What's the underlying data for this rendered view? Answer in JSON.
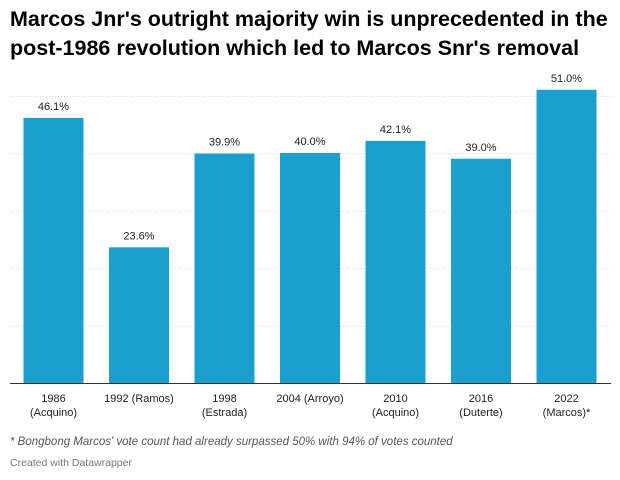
{
  "title": "Marcos Jnr's outright majority win is unprecedented in the post-1986 revolution which led to Marcos Snr's removal",
  "footnote": "* Bongbong Marcos' vote count had already surpassed 50% with 94% of votes counted",
  "credit": "Created with Datawrapper",
  "colors": {
    "bar": "#1a9fce",
    "grid": "#d9d9d9",
    "axis": "#333333",
    "label": "#222222"
  },
  "chart_data": {
    "type": "bar",
    "title": "Marcos Jnr's outright majority win is unprecedented in the post-1986 revolution which led to Marcos Snr's removal",
    "xlabel": "",
    "ylabel": "",
    "ylim": [
      0,
      56
    ],
    "gridlines": [
      10,
      20,
      30,
      40,
      50
    ],
    "grid": true,
    "categories": [
      [
        "1986",
        "(Acquino)"
      ],
      [
        "1992 (Ramos)"
      ],
      [
        "1998",
        "(Estrada)"
      ],
      [
        "2004 (Arroyo)"
      ],
      [
        "2010",
        "(Acquino)"
      ],
      [
        "2016",
        "(Duterte)"
      ],
      [
        "2022",
        "(Marcos)*"
      ]
    ],
    "values": [
      46.1,
      23.6,
      39.9,
      40.0,
      42.1,
      39.0,
      51.0
    ],
    "value_labels": [
      "46.1%",
      "23.6%",
      "39.9%",
      "40.0%",
      "42.1%",
      "39.0%",
      "51.0%"
    ]
  }
}
